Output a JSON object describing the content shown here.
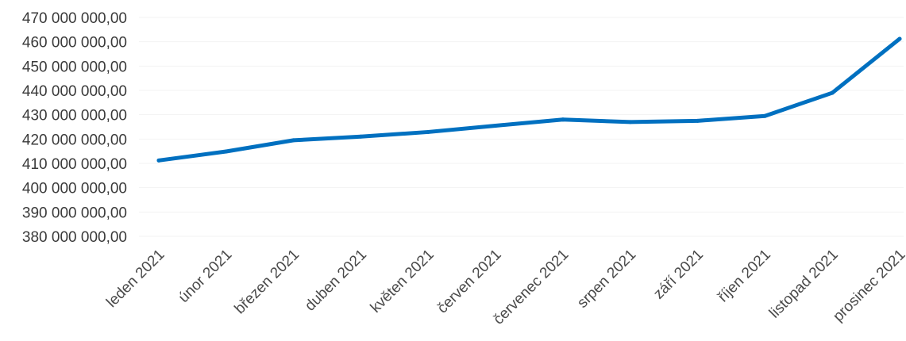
{
  "chart_data": {
    "type": "line",
    "title": "",
    "xlabel": "",
    "ylabel": "",
    "ylim": [
      380000000,
      470000000
    ],
    "yticks": [
      "470 000 000,00",
      "460 000 000,00",
      "450 000 000,00",
      "440 000 000,00",
      "430 000 000,00",
      "420 000 000,00",
      "410 000 000,00",
      "400 000 000,00",
      "390 000 000,00",
      "380 000 000,00"
    ],
    "categories": [
      "leden 2021",
      "únor 2021",
      "březen 2021",
      "duben 2021",
      "květen 2021",
      "červen 2021",
      "červenec 2021",
      "srpen 2021",
      "září 2021",
      "říjen 2021",
      "listopad 2021",
      "prosinec 2021"
    ],
    "series": [
      {
        "values": [
          411200000,
          414900000,
          419500000,
          421000000,
          422900000,
          425500000,
          428000000,
          427000000,
          427500000,
          429500000,
          439000000,
          461200000
        ]
      }
    ],
    "grid": true,
    "legend": "none",
    "colors": {
      "line": "#0070c0",
      "grid": "#f3f3f3",
      "text": "#3a3a3a"
    }
  }
}
